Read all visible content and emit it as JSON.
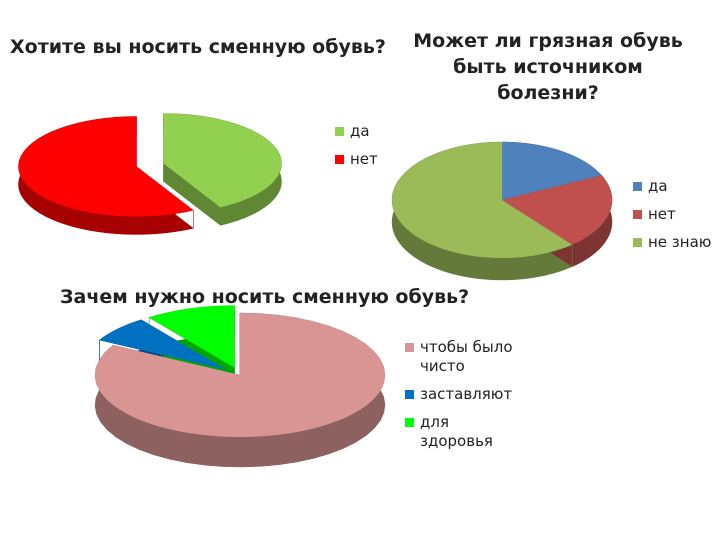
{
  "chart_data": [
    {
      "type": "pie",
      "title": "Хотите вы носить сменную обувь?",
      "categories": [
        "да",
        "нет"
      ],
      "values": [
        42,
        58
      ],
      "colors": [
        "#92d050",
        "#ff0000"
      ]
    },
    {
      "type": "pie",
      "title": "Может ли грязная обувь быть источником болезни?",
      "categories": [
        "да",
        "нет",
        "не знаю"
      ],
      "values": [
        18,
        21,
        61
      ],
      "colors": [
        "#4f81bd",
        "#c0504d",
        "#9bbb59"
      ]
    },
    {
      "type": "pie",
      "title": "Зачем нужно носить сменную обувь?",
      "categories": [
        "чтобы было чисто",
        "заставляют",
        "для здоровья"
      ],
      "values": [
        83,
        7,
        10
      ],
      "colors": [
        "#d99594",
        "#0070c0",
        "#00ff00"
      ]
    }
  ]
}
